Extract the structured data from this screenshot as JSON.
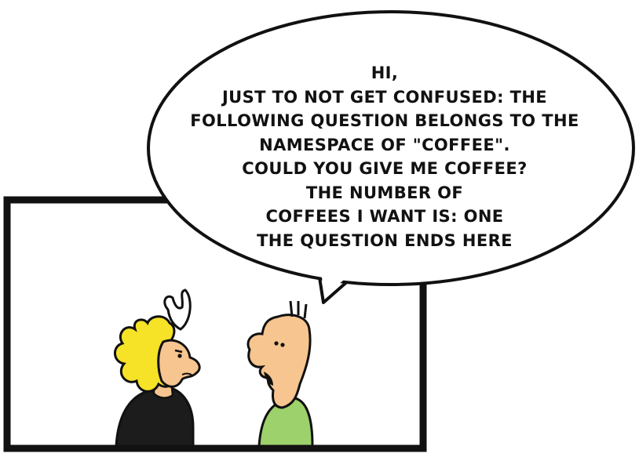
{
  "speech_bubble": {
    "lines": [
      "HI,",
      "JUST TO NOT GET CONFUSED: THE",
      "FOLLOWING QUESTION BELONGS TO THE",
      "NAMESPACE OF \"COFFEE\".",
      "COULD YOU GIVE ME COFFEE?",
      "THE NUMBER OF",
      "COFFEES I WANT IS: ONE",
      "THE QUESTION ENDS HERE"
    ]
  },
  "colors": {
    "outline": "#111111",
    "panel_background": "#ffffff",
    "woman_hair": "#f6e227",
    "skin": "#f7c58f",
    "woman_shirt": "#1c1c1c",
    "man_shirt": "#9dd16c"
  }
}
